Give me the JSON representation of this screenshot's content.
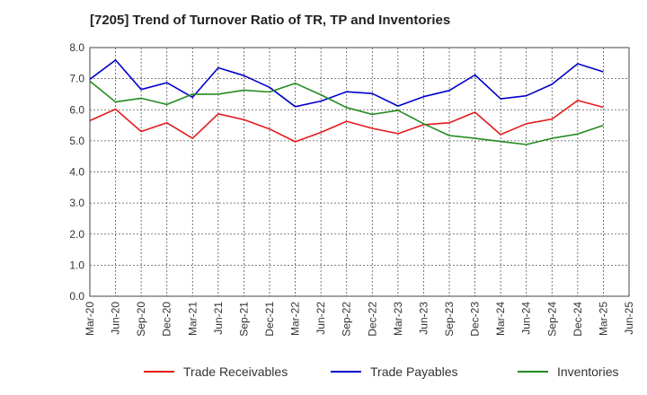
{
  "chart_data": {
    "type": "line",
    "title": "[7205]  Trend of Turnover Ratio of TR, TP and Inventories",
    "xlabel": "",
    "ylabel": "",
    "ylim": [
      0,
      8
    ],
    "y_ticks": [
      "0.0",
      "1.0",
      "2.0",
      "3.0",
      "4.0",
      "5.0",
      "6.0",
      "7.0",
      "8.0"
    ],
    "x": [
      "Mar-20",
      "Jun-20",
      "Sep-20",
      "Dec-20",
      "Mar-21",
      "Jun-21",
      "Sep-21",
      "Dec-21",
      "Mar-22",
      "Jun-22",
      "Sep-22",
      "Dec-22",
      "Mar-23",
      "Jun-23",
      "Sep-23",
      "Dec-23",
      "Mar-24",
      "Jun-24",
      "Sep-24",
      "Dec-24",
      "Mar-25",
      "Jun-25"
    ],
    "grid": true,
    "legend_position": "bottom",
    "series": [
      {
        "name": "Trade Receivables",
        "color": "#e31a1c",
        "values": [
          5.65,
          6.02,
          5.3,
          5.58,
          5.08,
          5.87,
          5.68,
          5.38,
          4.97,
          5.27,
          5.63,
          5.4,
          5.23,
          5.52,
          5.58,
          5.92,
          5.2,
          5.55,
          5.7,
          6.3,
          6.08,
          null
        ]
      },
      {
        "name": "Trade Payables",
        "color": "#0000cc",
        "values": [
          6.98,
          7.6,
          6.65,
          6.87,
          6.4,
          7.35,
          7.1,
          6.72,
          6.1,
          6.28,
          6.58,
          6.52,
          6.12,
          6.42,
          6.62,
          7.12,
          6.35,
          6.45,
          6.82,
          7.48,
          7.22,
          null
        ]
      },
      {
        "name": "Inventories",
        "color": "#228b22",
        "values": [
          6.92,
          6.25,
          6.37,
          6.17,
          6.5,
          6.5,
          6.63,
          6.57,
          6.85,
          6.48,
          6.07,
          5.85,
          5.98,
          5.55,
          5.17,
          5.08,
          4.98,
          4.88,
          5.08,
          5.22,
          5.5,
          null
        ]
      }
    ]
  }
}
